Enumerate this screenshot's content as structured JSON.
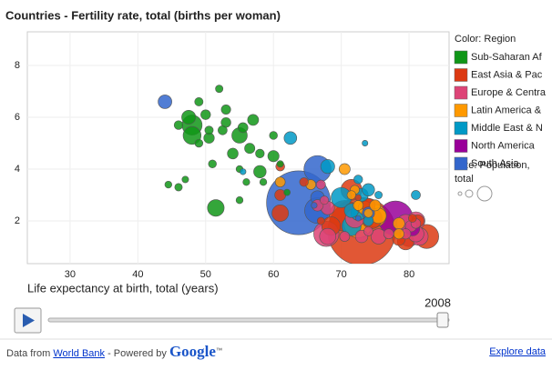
{
  "chart_data": {
    "type": "bubble",
    "title": "Countries - Fertility rate, total (births per woman)",
    "x_label": "Life expectancy at birth, total (years)",
    "legend_title": "Color: Region",
    "size_legend_title": [
      "Size: Population,",
      "total"
    ],
    "year": "2008",
    "xlim": [
      23.7,
      85.9
    ],
    "xticks": [
      30,
      40,
      50,
      60,
      70,
      80
    ],
    "ylim": [
      0.35,
      9.3
    ],
    "yticks": [
      2,
      4,
      6,
      8
    ],
    "grid": true,
    "series": [
      {
        "name": "Sub-Saharan Af",
        "color": "#109618",
        "x": [
          44.5,
          46,
          47,
          46,
          47.5,
          48,
          49,
          50,
          50.5,
          51,
          51.5,
          52,
          52.5,
          53,
          54,
          55,
          55.5,
          55,
          56,
          56.5,
          57,
          58,
          58.5,
          58,
          60,
          60,
          61,
          62,
          55,
          53,
          49,
          48,
          50.5
        ],
        "values": [
          3.4,
          3.3,
          3.6,
          5.7,
          6.0,
          5.7,
          6.6,
          6.1,
          5.2,
          4.2,
          2.5,
          7.1,
          5.5,
          6.3,
          4.6,
          5.3,
          5.6,
          4.0,
          3.5,
          4.8,
          5.9,
          3.9,
          3.5,
          4.6,
          4.5,
          5.3,
          4.2,
          3.1,
          2.8,
          5.8,
          5.0,
          5.3,
          5.5
        ],
        "sizes": [
          2,
          3,
          1.5,
          6,
          30,
          80,
          5,
          9,
          12,
          4,
          49,
          3,
          7,
          8,
          13,
          40,
          10,
          2,
          1.8,
          11,
          14,
          21,
          2,
          6,
          15,
          4,
          1.5,
          1.3,
          2,
          9,
          4,
          60,
          5
        ]
      },
      {
        "name": "East Asia & Pac",
        "color": "#dc3912",
        "x": [
          73,
          70.5,
          82.6,
          71.5,
          74.5,
          68.5,
          61,
          79.5,
          74,
          61,
          64.5,
          61,
          81.3,
          67,
          72.5,
          78.5,
          80.5
        ],
        "values": [
          1.6,
          2.2,
          1.4,
          3.2,
          2.1,
          1.8,
          2.3,
          1.2,
          2.6,
          3.0,
          3.5,
          4.1,
          2.0,
          2.0,
          2.9,
          1.3,
          2.1
        ],
        "sizes": [
          1330,
          230,
          127,
          90,
          86,
          67,
          48,
          48,
          27,
          14,
          6,
          6.5,
          21,
          2.6,
          0.8,
          23,
          4.3
        ]
      },
      {
        "name": "Europe & Centra",
        "color": "#dd4477",
        "x": [
          67.8,
          80,
          81,
          79.5,
          81.5,
          81,
          68,
          75.5,
          72,
          66.5,
          68,
          73,
          80.3,
          67,
          67.5,
          70.5,
          79.5,
          81,
          77,
          74
        ],
        "values": [
          1.5,
          1.4,
          2.0,
          1.9,
          1.4,
          1.5,
          1.4,
          1.4,
          2.1,
          2.6,
          2.5,
          1.4,
          1.8,
          3.4,
          2.8,
          1.4,
          1.5,
          1.9,
          1.5,
          1.6
        ],
        "sizes": [
          142,
          82,
          62,
          61,
          59,
          45,
          46,
          38,
          70,
          16,
          27,
          21,
          16,
          7,
          5,
          10,
          11,
          9,
          10,
          7
        ]
      },
      {
        "name": "Latin America &",
        "color": "#ff9900",
        "x": [
          72.5,
          75,
          73,
          75.5,
          73,
          73.5,
          70.5,
          65.5,
          61,
          78.5,
          75,
          78.5,
          72,
          71.5,
          72.5,
          74
        ],
        "values": [
          1.9,
          2.2,
          2.4,
          2.2,
          2.6,
          2.5,
          4.0,
          3.4,
          3.5,
          1.9,
          2.6,
          1.5,
          3.2,
          3.0,
          2.6,
          2.3
        ],
        "sizes": [
          192,
          107,
          45,
          40,
          29,
          28,
          14,
          10,
          10,
          17,
          14,
          11,
          7,
          6,
          10,
          6
        ]
      },
      {
        "name": "Middle East & N",
        "color": "#0099c6",
        "x": [
          70,
          71.5,
          72.5,
          71.5,
          68,
          73,
          62.5,
          74,
          74,
          81,
          72.5,
          55.5,
          75.5,
          73.5
        ],
        "values": [
          2.9,
          1.8,
          2.3,
          2.4,
          4.1,
          3.0,
          5.2,
          3.2,
          2.0,
          3.0,
          3.6,
          3.9,
          3.0,
          5.0
        ],
        "sizes": [
          82,
          72,
          34,
          31,
          30,
          25,
          22,
          21,
          10,
          7,
          6,
          0.8,
          2.8,
          0.5
        ]
      },
      {
        "name": "North America",
        "color": "#990099",
        "x": [
          78,
          80.5
        ],
        "values": [
          2.1,
          1.7
        ],
        "sizes": [
          304,
          33
        ]
      },
      {
        "name": "South Asia",
        "color": "#3366cc",
        "x": [
          63.7,
          66.5,
          66.5,
          44,
          66.5,
          74,
          66,
          72.5
        ],
        "values": [
          2.7,
          4.0,
          2.4,
          6.6,
          2.9,
          2.3,
          2.6,
          2.1
        ],
        "sizes": [
          1180,
          170,
          150,
          28,
          28,
          20,
          0.7,
          0.3
        ]
      }
    ]
  },
  "footer": {
    "prefix": "Data from",
    "source": "World Bank",
    "powered": "- Powered by",
    "brand": "Google",
    "tm": "™",
    "explore": "Explore data"
  }
}
